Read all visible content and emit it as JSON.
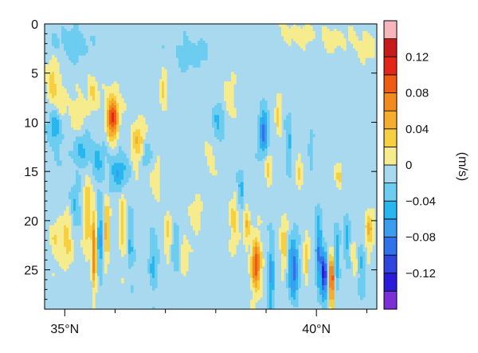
{
  "chart_data": {
    "type": "heatmap",
    "title": "",
    "xlabel": "",
    "ylabel": "",
    "x_axis": {
      "range": [
        34.6,
        41.2
      ],
      "ticks": [
        {
          "value": 35,
          "label": "35°N"
        },
        {
          "value": 40,
          "label": "40°N"
        }
      ]
    },
    "y_axis": {
      "range": [
        0,
        29
      ],
      "inverted": true,
      "ticks": [
        {
          "value": 0,
          "label": "0"
        },
        {
          "value": 5,
          "label": "5"
        },
        {
          "value": 10,
          "label": "10"
        },
        {
          "value": 15,
          "label": "15"
        },
        {
          "value": 20,
          "label": "20"
        },
        {
          "value": 25,
          "label": "25"
        }
      ]
    },
    "colorbar": {
      "unit": "(m/s)",
      "levels": [
        -0.16,
        -0.14,
        -0.12,
        -0.1,
        -0.08,
        -0.06,
        -0.04,
        -0.02,
        0,
        0.02,
        0.04,
        0.06,
        0.08,
        0.1,
        0.12,
        0.14,
        0.16
      ],
      "colors": [
        "#7b2fd6",
        "#2a1ad9",
        "#2f45e0",
        "#2f72ea",
        "#3b9cf0",
        "#28b6ee",
        "#6ccdf0",
        "#a9d9ee",
        "#f7ec8d",
        "#f6d040",
        "#f5ad2e",
        "#f38a1e",
        "#ef5a14",
        "#e4261a",
        "#c81a1a",
        "#f7b6bc"
      ],
      "labels": [
        {
          "value": 0.12,
          "label": "0.12"
        },
        {
          "value": 0.08,
          "label": "0.08"
        },
        {
          "value": 0.04,
          "label": "0.04"
        },
        {
          "value": 0,
          "label": "0"
        },
        {
          "value": -0.04,
          "label": "−0.04"
        },
        {
          "value": -0.08,
          "label": "−0.08"
        },
        {
          "value": -0.12,
          "label": "−0.12"
        }
      ]
    },
    "background_value": -0.01,
    "anomalies": [
      {
        "lat": 34.75,
        "depth": 6.0,
        "value": 0.045,
        "wx": 0.12,
        "wy": 2.2
      },
      {
        "lat": 34.8,
        "depth": 10.5,
        "value": -0.045,
        "wx": 0.12,
        "wy": 2.2
      },
      {
        "lat": 34.95,
        "depth": 8.5,
        "value": 0.022,
        "wx": 0.12,
        "wy": 1.5
      },
      {
        "lat": 35.15,
        "depth": 2.0,
        "value": -0.028,
        "wx": 0.3,
        "wy": 1.5
      },
      {
        "lat": 35.25,
        "depth": 9.0,
        "value": 0.022,
        "wx": 0.18,
        "wy": 2.0
      },
      {
        "lat": 35.35,
        "depth": 13.0,
        "value": -0.035,
        "wx": 0.2,
        "wy": 1.6
      },
      {
        "lat": 35.05,
        "depth": 22.0,
        "value": 0.045,
        "wx": 0.1,
        "wy": 2.5
      },
      {
        "lat": 34.8,
        "depth": 22.0,
        "value": 0.03,
        "wx": 0.1,
        "wy": 2.0
      },
      {
        "lat": 35.2,
        "depth": 18.5,
        "value": -0.03,
        "wx": 0.1,
        "wy": 2.0
      },
      {
        "lat": 35.45,
        "depth": 19.5,
        "value": 0.045,
        "wx": 0.07,
        "wy": 4.0
      },
      {
        "lat": 35.58,
        "depth": 23.0,
        "value": 0.095,
        "wx": 0.045,
        "wy": 3.8
      },
      {
        "lat": 35.7,
        "depth": 22.0,
        "value": -0.055,
        "wx": 0.05,
        "wy": 3.5
      },
      {
        "lat": 35.83,
        "depth": 21.0,
        "value": 0.06,
        "wx": 0.045,
        "wy": 3.2
      },
      {
        "lat": 35.55,
        "depth": 6.8,
        "value": 0.035,
        "wx": 0.1,
        "wy": 1.8
      },
      {
        "lat": 35.65,
        "depth": 14.0,
        "value": -0.035,
        "wx": 0.1,
        "wy": 2.0
      },
      {
        "lat": 35.95,
        "depth": 9.5,
        "value": 0.115,
        "wx": 0.13,
        "wy": 2.2
      },
      {
        "lat": 36.08,
        "depth": 10.0,
        "value": -0.028,
        "wx": 0.05,
        "wy": 2.0
      },
      {
        "lat": 35.8,
        "depth": 10.0,
        "value": -0.022,
        "wx": 0.06,
        "wy": 2.0
      },
      {
        "lat": 36.05,
        "depth": 15.0,
        "value": -0.05,
        "wx": 0.18,
        "wy": 1.8
      },
      {
        "lat": 36.15,
        "depth": 20.0,
        "value": 0.045,
        "wx": 0.06,
        "wy": 3.0
      },
      {
        "lat": 36.3,
        "depth": 22.0,
        "value": -0.035,
        "wx": 0.06,
        "wy": 3.0
      },
      {
        "lat": 36.45,
        "depth": 12.0,
        "value": 0.045,
        "wx": 0.13,
        "wy": 2.2
      },
      {
        "lat": 36.6,
        "depth": 13.5,
        "value": -0.025,
        "wx": 0.1,
        "wy": 1.5
      },
      {
        "lat": 36.8,
        "depth": 16.0,
        "value": 0.022,
        "wx": 0.12,
        "wy": 1.5
      },
      {
        "lat": 36.75,
        "depth": 24.0,
        "value": -0.035,
        "wx": 0.08,
        "wy": 3.0
      },
      {
        "lat": 36.95,
        "depth": 6.5,
        "value": 0.045,
        "wx": 0.06,
        "wy": 1.4
      },
      {
        "lat": 37.05,
        "depth": 21.0,
        "value": 0.03,
        "wx": 0.07,
        "wy": 2.5
      },
      {
        "lat": 37.2,
        "depth": 22.5,
        "value": -0.03,
        "wx": 0.07,
        "wy": 2.5
      },
      {
        "lat": 37.35,
        "depth": 23.5,
        "value": 0.025,
        "wx": 0.08,
        "wy": 2.5
      },
      {
        "lat": 37.5,
        "depth": 3.0,
        "value": -0.025,
        "wx": 0.3,
        "wy": 1.5
      },
      {
        "lat": 37.6,
        "depth": 19.5,
        "value": 0.025,
        "wx": 0.12,
        "wy": 1.5
      },
      {
        "lat": 37.9,
        "depth": 14.0,
        "value": 0.022,
        "wx": 0.1,
        "wy": 2.0
      },
      {
        "lat": 38.05,
        "depth": 10.0,
        "value": -0.03,
        "wx": 0.12,
        "wy": 2.0
      },
      {
        "lat": 38.25,
        "depth": 7.5,
        "value": 0.025,
        "wx": 0.12,
        "wy": 1.8
      },
      {
        "lat": 38.35,
        "depth": 20.0,
        "value": 0.04,
        "wx": 0.08,
        "wy": 2.4
      },
      {
        "lat": 38.5,
        "depth": 17.0,
        "value": -0.04,
        "wx": 0.06,
        "wy": 2.0
      },
      {
        "lat": 38.62,
        "depth": 20.5,
        "value": 0.05,
        "wx": 0.06,
        "wy": 2.2
      },
      {
        "lat": 38.8,
        "depth": 24.5,
        "value": 0.105,
        "wx": 0.09,
        "wy": 2.5
      },
      {
        "lat": 38.95,
        "depth": 11.0,
        "value": -0.085,
        "wx": 0.08,
        "wy": 2.0
      },
      {
        "lat": 39.05,
        "depth": 15.0,
        "value": 0.03,
        "wx": 0.06,
        "wy": 2.0
      },
      {
        "lat": 39.1,
        "depth": 26.0,
        "value": -0.06,
        "wx": 0.06,
        "wy": 3.5
      },
      {
        "lat": 39.25,
        "depth": 9.5,
        "value": 0.04,
        "wx": 0.05,
        "wy": 2.0
      },
      {
        "lat": 39.35,
        "depth": 22.5,
        "value": 0.045,
        "wx": 0.06,
        "wy": 2.5
      },
      {
        "lat": 39.45,
        "depth": 12.5,
        "value": -0.04,
        "wx": 0.05,
        "wy": 3.0
      },
      {
        "lat": 39.55,
        "depth": 25.0,
        "value": -0.085,
        "wx": 0.09,
        "wy": 3.0
      },
      {
        "lat": 39.65,
        "depth": 15.0,
        "value": 0.035,
        "wx": 0.06,
        "wy": 2.0
      },
      {
        "lat": 39.8,
        "depth": 24.0,
        "value": 0.04,
        "wx": 0.05,
        "wy": 2.5
      },
      {
        "lat": 39.9,
        "depth": 13.0,
        "value": -0.03,
        "wx": 0.05,
        "wy": 2.0
      },
      {
        "lat": 40.05,
        "depth": 23.5,
        "value": -0.075,
        "wx": 0.06,
        "wy": 3.5
      },
      {
        "lat": 40.15,
        "depth": 25.5,
        "value": -0.13,
        "wx": 0.05,
        "wy": 2.2
      },
      {
        "lat": 40.3,
        "depth": 26.0,
        "value": 0.115,
        "wx": 0.05,
        "wy": 2.6
      },
      {
        "lat": 40.4,
        "depth": 24.0,
        "value": -0.05,
        "wx": 0.05,
        "wy": 3.0
      },
      {
        "lat": 40.45,
        "depth": 15.5,
        "value": 0.035,
        "wx": 0.06,
        "wy": 1.5
      },
      {
        "lat": 40.6,
        "depth": 22.0,
        "value": -0.04,
        "wx": 0.06,
        "wy": 2.5
      },
      {
        "lat": 40.75,
        "depth": 24.0,
        "value": 0.03,
        "wx": 0.06,
        "wy": 2.0
      },
      {
        "lat": 40.9,
        "depth": 25.0,
        "value": -0.035,
        "wx": 0.07,
        "wy": 2.5
      },
      {
        "lat": 41.05,
        "depth": 21.0,
        "value": 0.05,
        "wx": 0.08,
        "wy": 2.0
      },
      {
        "lat": 40.95,
        "depth": 2.0,
        "value": 0.022,
        "wx": 0.25,
        "wy": 1.5
      },
      {
        "lat": 40.3,
        "depth": 1.5,
        "value": 0.022,
        "wx": 0.25,
        "wy": 1.2
      },
      {
        "lat": 39.6,
        "depth": 1.0,
        "value": 0.022,
        "wx": 0.3,
        "wy": 1.2
      }
    ]
  }
}
